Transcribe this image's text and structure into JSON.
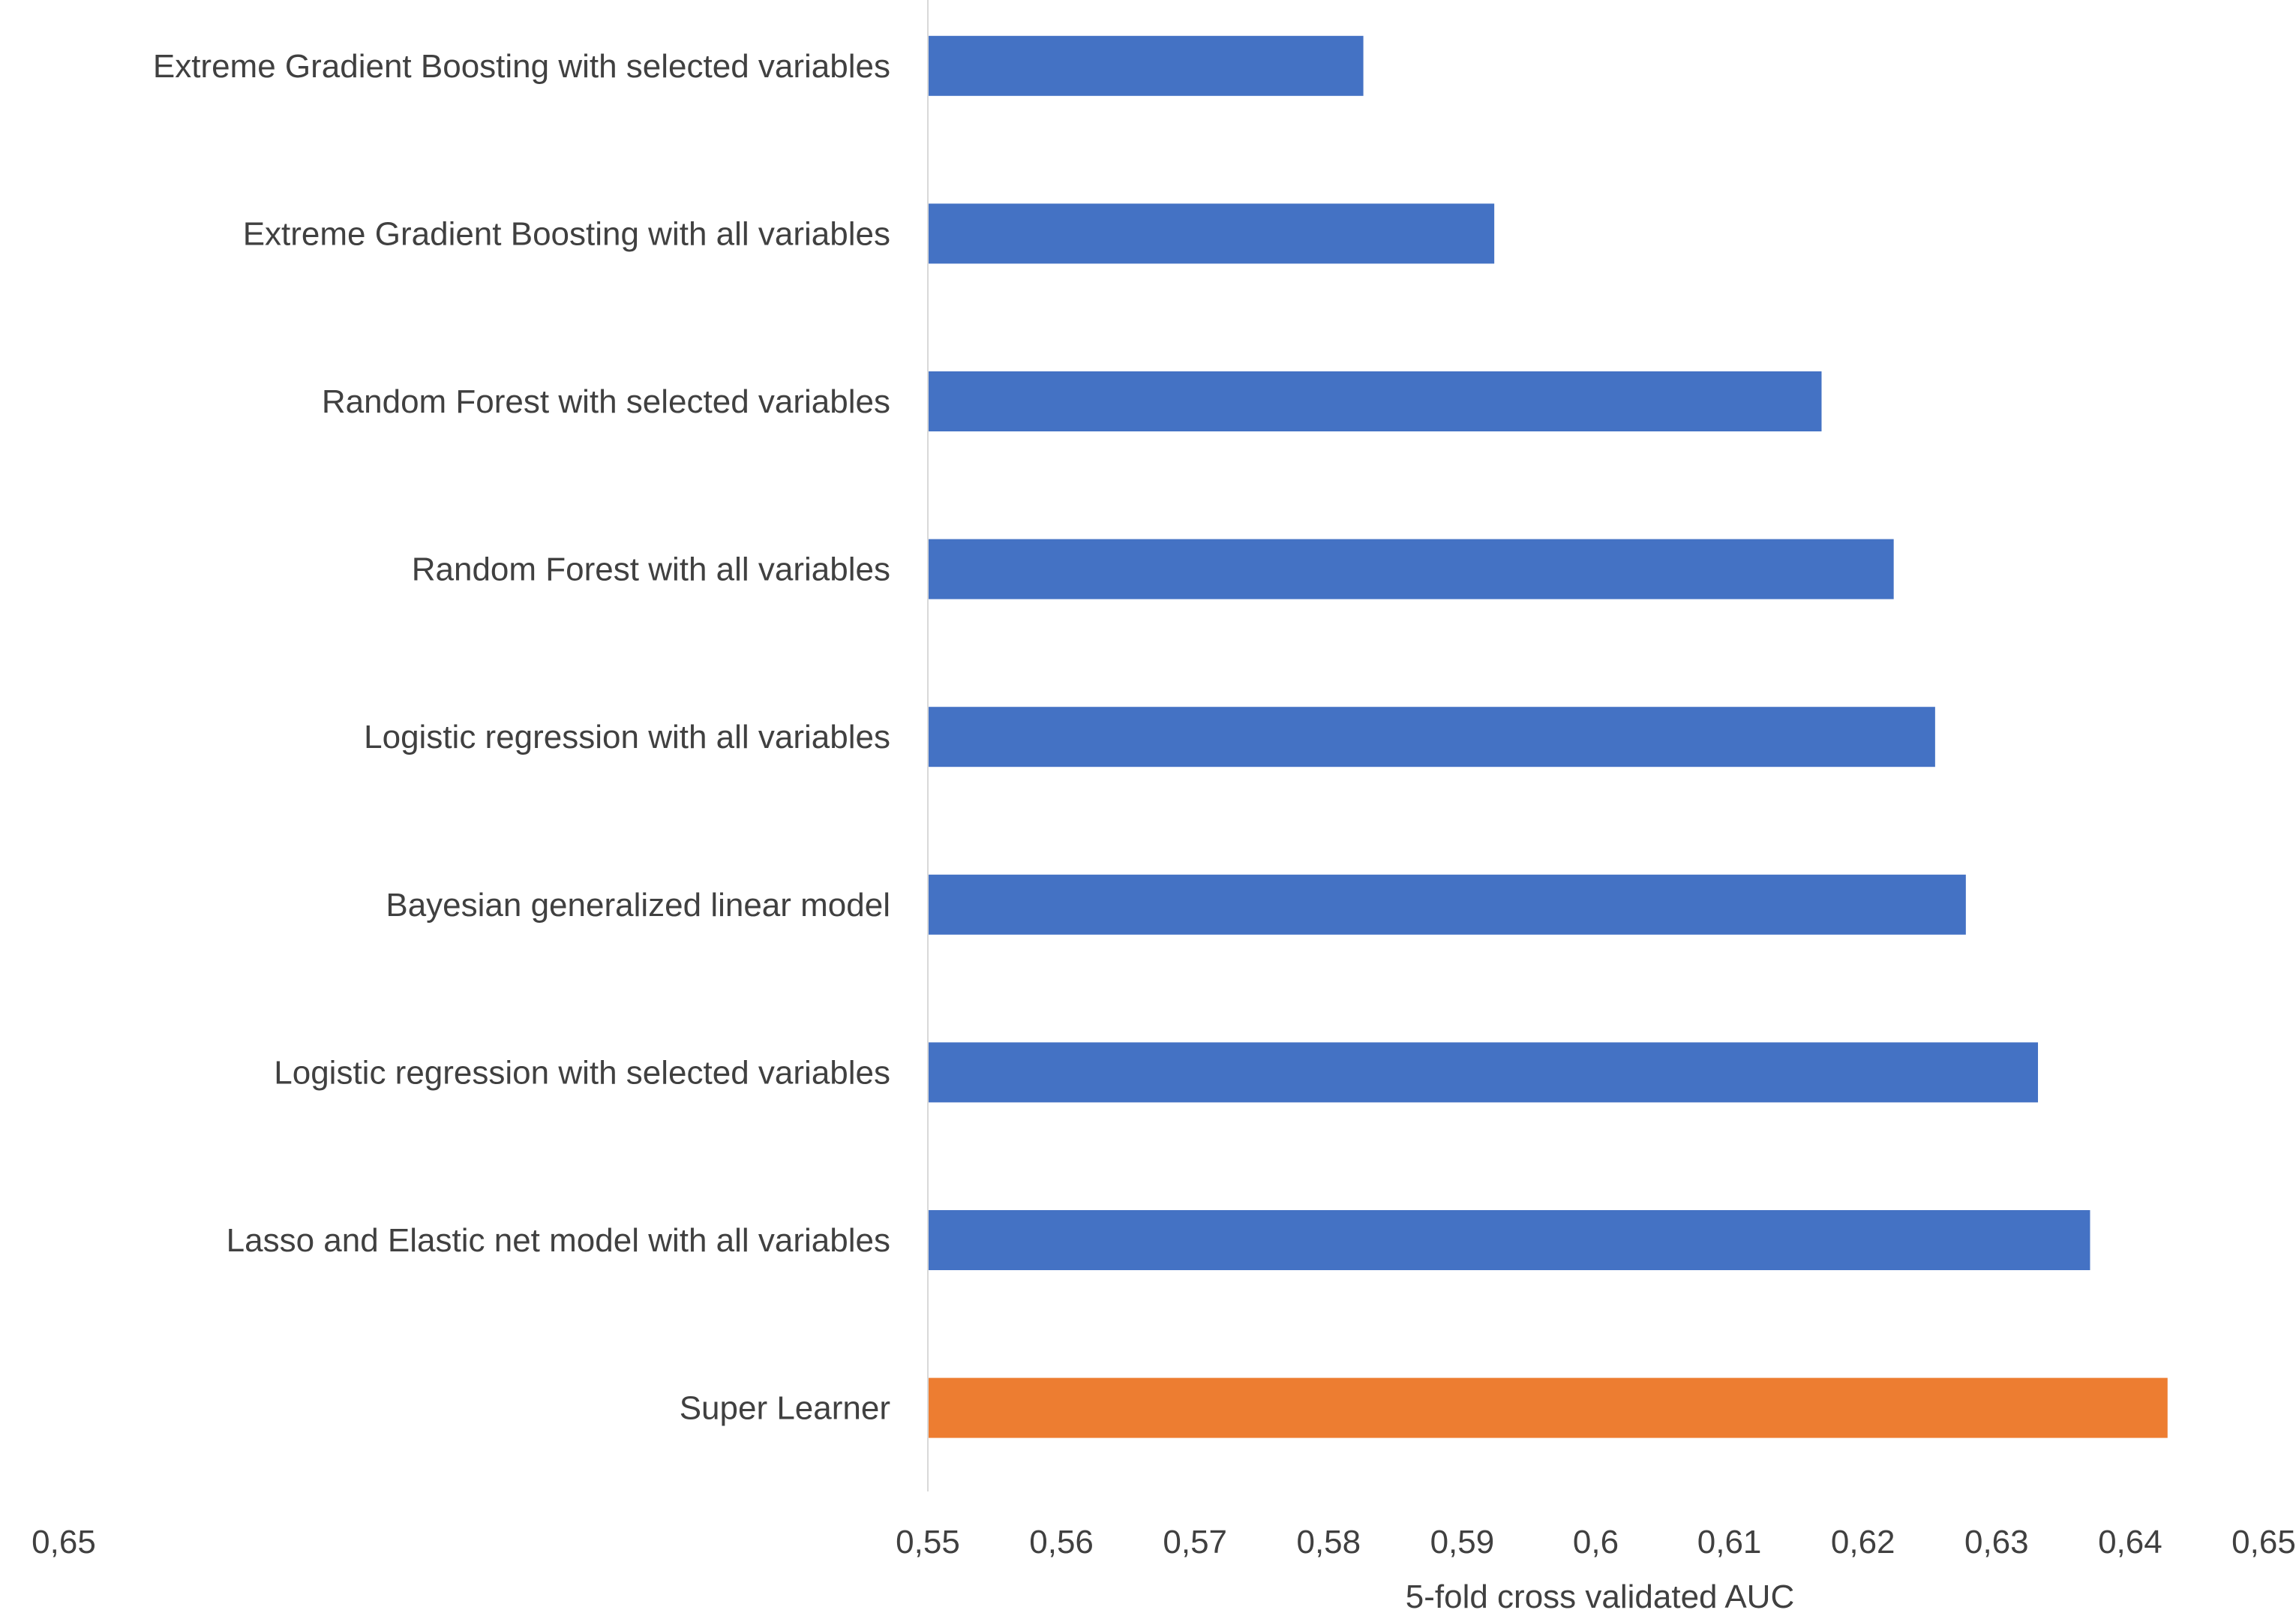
{
  "chart_data": {
    "type": "bar",
    "orientation": "horizontal",
    "title": "",
    "xlabel": "5-fold cross validated AUC",
    "ylabel": "",
    "xlim": [
      0.55,
      0.65
    ],
    "grid": false,
    "legend": "none",
    "categories": [
      "Extreme Gradient Boosting with selected variables",
      "Extreme Gradient Boosting with all variables",
      "Random Forest with selected variables",
      "Random Forest with all variables",
      "Logistic regression with all variables",
      "Bayesian generalized linear model",
      "Logistic regression with selected variables",
      "Lasso and Elastic net model with all variables",
      "Super Learner"
    ],
    "values": [
      0.5826,
      0.5924,
      0.6169,
      0.6223,
      0.6254,
      0.6277,
      0.6331,
      0.637,
      0.6428
    ],
    "bar_colors": [
      "#4472C4",
      "#4472C4",
      "#4472C4",
      "#4472C4",
      "#4472C4",
      "#4472C4",
      "#4472C4",
      "#4472C4",
      "#ED7D31"
    ],
    "x_tick_labels": [
      "0,55",
      "0,56",
      "0,57",
      "0,58",
      "0,59",
      "0,6",
      "0,61",
      "0,62",
      "0,63",
      "0,64",
      "0,65"
    ],
    "extra_tick_label": "0,65"
  }
}
